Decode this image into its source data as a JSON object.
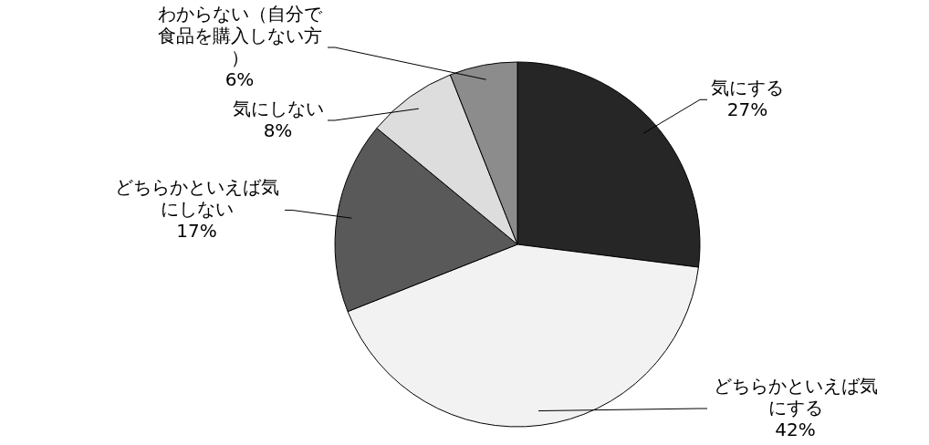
{
  "chart_data": {
    "type": "pie",
    "categories": [
      "気にする",
      "どちらかといえば気にする",
      "どちらかといえば気にしない",
      "気にしない",
      "わからない（自分で食品を購入しない方）"
    ],
    "values": [
      27,
      42,
      17,
      8,
      6
    ],
    "colors": [
      "#262626",
      "#f2f2f2",
      "#595959",
      "#dddddd",
      "#8c8c8c"
    ],
    "value_labels": [
      "27%",
      "42%",
      "17%",
      "8%",
      "6%"
    ]
  }
}
